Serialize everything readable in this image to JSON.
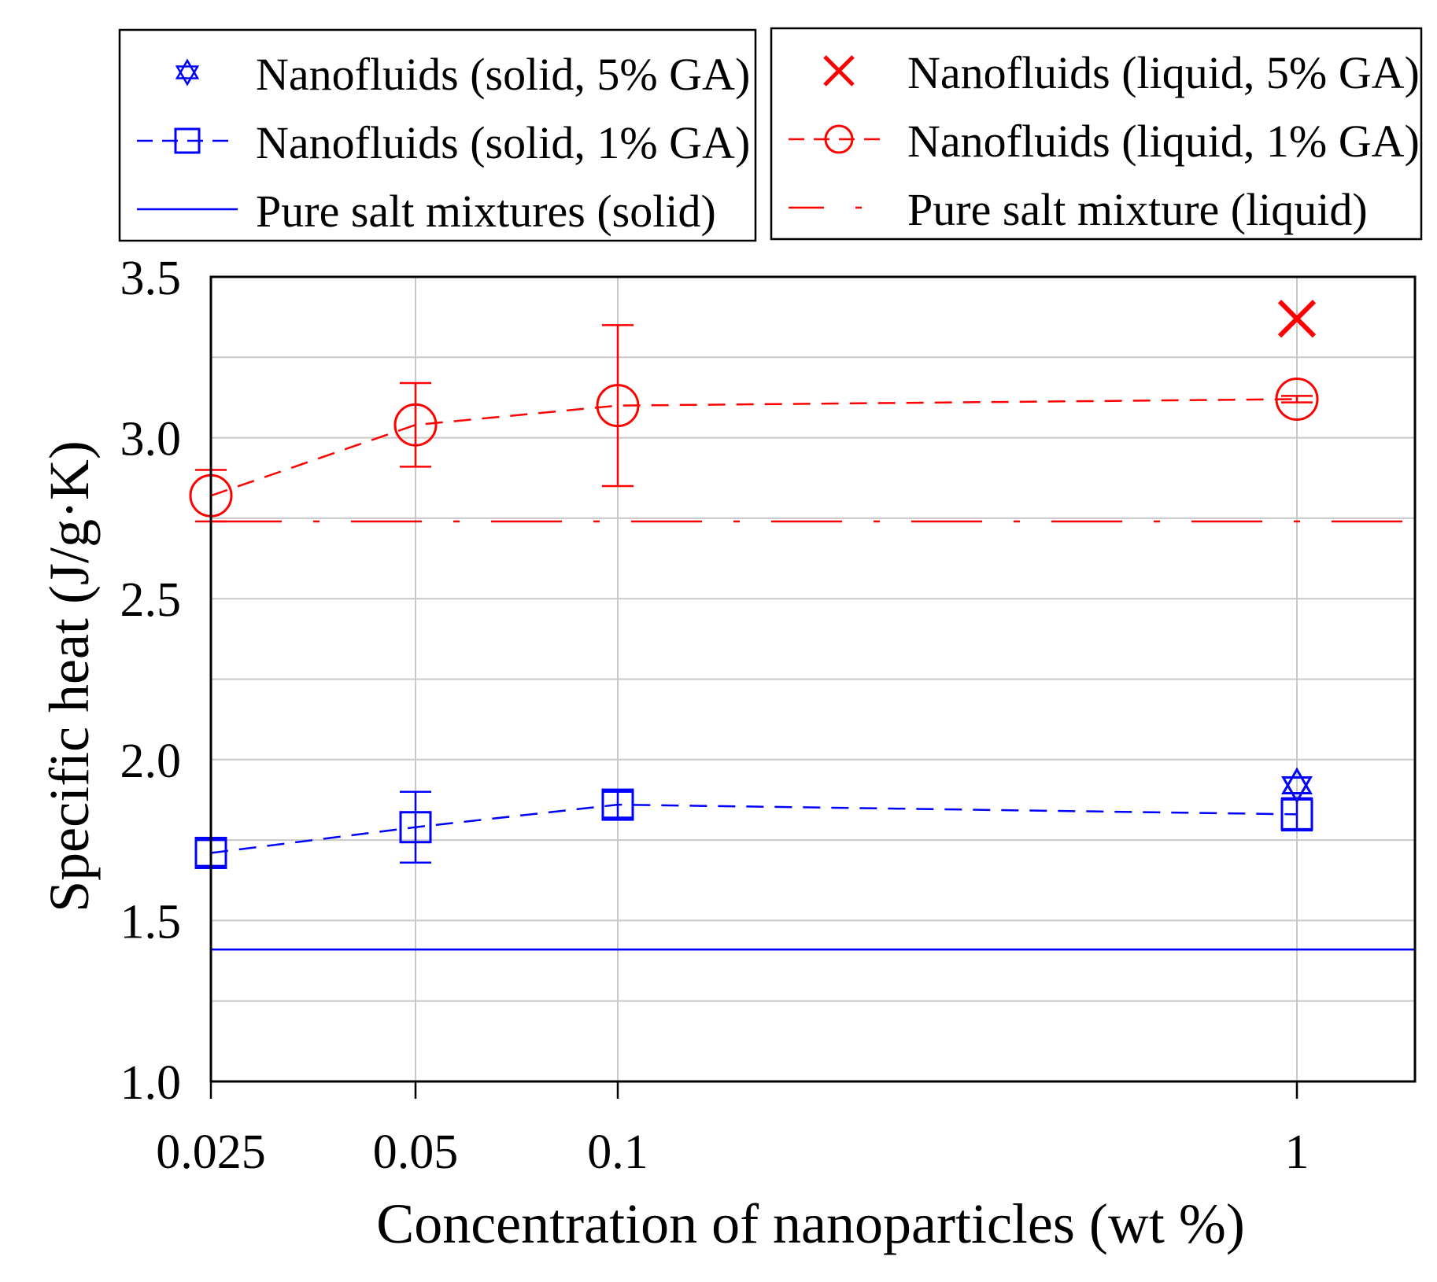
{
  "colors": {
    "solid": "#0000ff",
    "liquid": "#ff0000",
    "grid": "#c8c8c8",
    "axis": "#000000"
  },
  "chart_data": {
    "type": "line",
    "xscale": "categorical",
    "categories": [
      "0.025",
      "0.05",
      "0.1",
      "1"
    ],
    "xlabel": "Concentration of nanoparticles (wt %)",
    "ylabel": "Specific heat (J/g·K)",
    "ylim": [
      1.0,
      3.5
    ],
    "yticks": [
      "1.0",
      "1.5",
      "2.0",
      "2.5",
      "3.0",
      "3.5"
    ],
    "grid": true,
    "legend_position": "top",
    "series": [
      {
        "name": "Nanofluids (solid, 5% GA)",
        "marker": "star",
        "line": "none",
        "color": "#0000ff",
        "points": [
          {
            "x": "1",
            "y": 1.92
          }
        ]
      },
      {
        "name": "Nanofluids (solid, 1% GA)",
        "marker": "square",
        "line": "dashed",
        "color": "#0000ff",
        "points": [
          {
            "x": "0.025",
            "y": 1.71,
            "err": 0.04
          },
          {
            "x": "0.05",
            "y": 1.79,
            "err": 0.11
          },
          {
            "x": "0.1",
            "y": 1.86,
            "err": 0.04
          },
          {
            "x": "1",
            "y": 1.83,
            "err": 0.05
          }
        ]
      },
      {
        "name": "Pure salt mixtures (solid)",
        "marker": "none",
        "line": "solid",
        "color": "#0000ff",
        "hline": 1.41
      },
      {
        "name": "Nanofluids (liquid, 5% GA)",
        "marker": "x",
        "line": "none",
        "color": "#ff0000",
        "points": [
          {
            "x": "1",
            "y": 3.37
          }
        ]
      },
      {
        "name": "Nanofluids (liquid, 1% GA)",
        "marker": "circle",
        "line": "dashed",
        "color": "#ff0000",
        "points": [
          {
            "x": "0.025",
            "y": 2.82,
            "err": 0.08
          },
          {
            "x": "0.05",
            "y": 3.04,
            "err": 0.13
          },
          {
            "x": "0.1",
            "y": 3.1,
            "err": 0.25
          },
          {
            "x": "1",
            "y": 3.12,
            "err": 0.01
          }
        ]
      },
      {
        "name": "Pure salt mixture (liquid)",
        "marker": "none",
        "line": "dashdot",
        "color": "#ff0000",
        "hline": 2.74
      }
    ]
  }
}
